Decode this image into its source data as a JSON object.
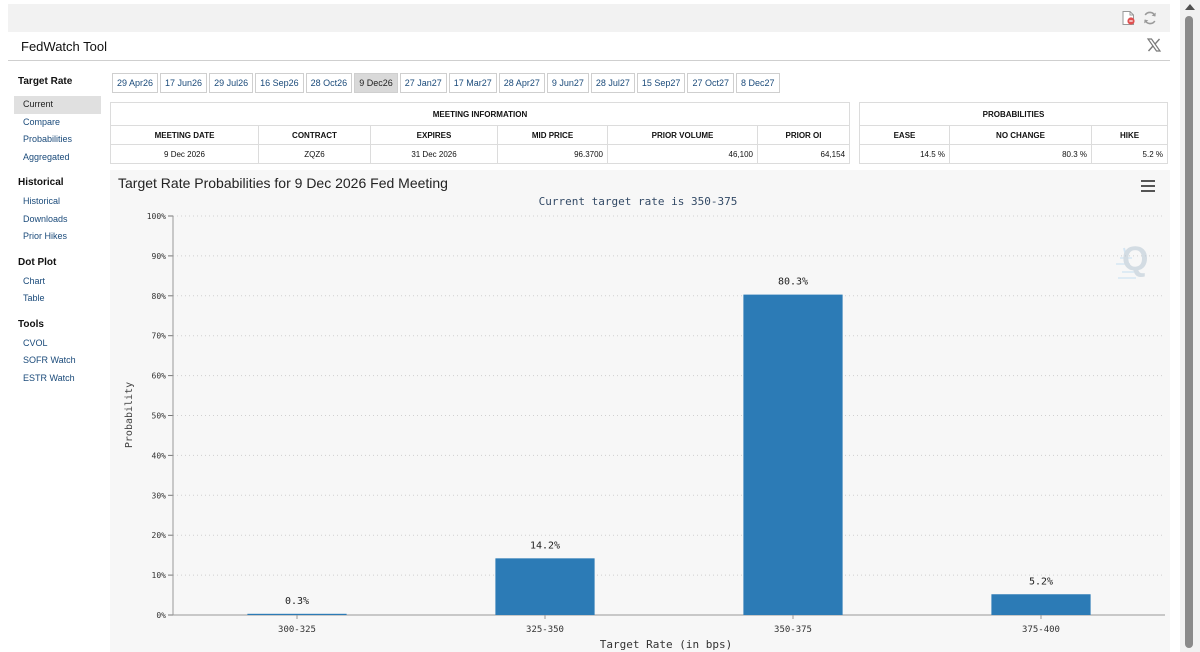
{
  "app": {
    "title": "FedWatch Tool"
  },
  "icons": {
    "pdf": "pdf-icon",
    "refresh": "refresh-icon",
    "share": "x-logo-icon",
    "menu": "hamburger-menu-icon"
  },
  "sidebar": {
    "sections": [
      {
        "heading": "Target Rate",
        "items": [
          "Current",
          "Compare",
          "Probabilities",
          "Aggregated"
        ]
      },
      {
        "heading": "Historical",
        "items": [
          "Historical",
          "Downloads",
          "Prior Hikes"
        ]
      },
      {
        "heading": "Dot Plot",
        "items": [
          "Chart",
          "Table"
        ]
      },
      {
        "heading": "Tools",
        "items": [
          "CVOL",
          "SOFR Watch",
          "ESTR Watch"
        ]
      }
    ],
    "active_item": "Current"
  },
  "date_tabs": {
    "items": [
      "29 Apr26",
      "17 Jun26",
      "29 Jul26",
      "16 Sep26",
      "28 Oct26",
      "9 Dec26",
      "27 Jan27",
      "17 Mar27",
      "28 Apr27",
      "9 Jun27",
      "28 Jul27",
      "15 Sep27",
      "27 Oct27",
      "8 Dec27"
    ],
    "active": "9 Dec26"
  },
  "meeting_info": {
    "section_title": "MEETING INFORMATION",
    "headers": [
      "MEETING DATE",
      "CONTRACT",
      "EXPIRES",
      "MID PRICE",
      "PRIOR VOLUME",
      "PRIOR OI"
    ],
    "values": [
      "9 Dec 2026",
      "ZQZ6",
      "31 Dec 2026",
      "96.3700",
      "46,100",
      "64,154"
    ]
  },
  "probabilities": {
    "section_title": "PROBABILITIES",
    "headers": [
      "EASE",
      "NO CHANGE",
      "HIKE"
    ],
    "values": [
      "14.5 %",
      "80.3 %",
      "5.2 %"
    ]
  },
  "chart_data": {
    "type": "bar",
    "title": "Target Rate Probabilities for 9 Dec 2026 Fed Meeting",
    "subtitle": "Current target rate is 350-375",
    "xlabel": "Target Rate (in bps)",
    "ylabel": "Probability",
    "categories": [
      "300-325",
      "325-350",
      "350-375",
      "375-400"
    ],
    "values": [
      0.3,
      14.2,
      80.3,
      5.2
    ],
    "data_labels": [
      "0.3%",
      "14.2%",
      "80.3%",
      "5.2%"
    ],
    "yticks": [
      "0%",
      "10%",
      "20%",
      "30%",
      "40%",
      "50%",
      "60%",
      "70%",
      "80%",
      "90%",
      "100%"
    ],
    "ylim": [
      0,
      100
    ],
    "grid": true,
    "bar_color": "#2c7bb6"
  }
}
